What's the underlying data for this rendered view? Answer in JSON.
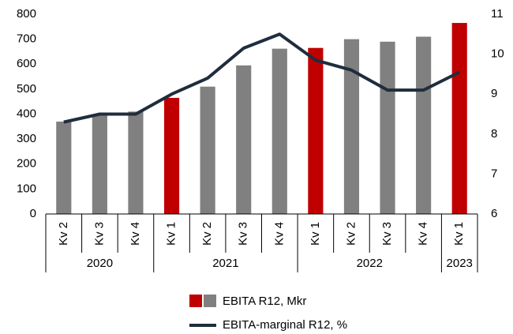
{
  "chart_data": {
    "type": "bar_line",
    "categories": [
      "Kv 2",
      "Kv 3",
      "Kv 4",
      "Kv 1",
      "Kv 2",
      "Kv 3",
      "Kv 4",
      "Kv 1",
      "Kv 2",
      "Kv 3",
      "Kv 4",
      "Kv 1"
    ],
    "category_years": [
      "2020",
      "2020",
      "2020",
      "2021",
      "2021",
      "2021",
      "2021",
      "2022",
      "2022",
      "2022",
      "2022",
      "2023"
    ],
    "series": [
      {
        "name": "EBITA R12, Mkr",
        "type": "bar",
        "axis": "y",
        "colors": [
          "#808080",
          "#808080",
          "#808080",
          "#c00000",
          "#808080",
          "#808080",
          "#808080",
          "#c00000",
          "#808080",
          "#808080",
          "#808080",
          "#c00000"
        ],
        "legend_colors": [
          "#c00000",
          "#808080"
        ],
        "values": [
          370,
          400,
          410,
          465,
          510,
          595,
          662,
          665,
          700,
          690,
          710,
          765
        ]
      },
      {
        "name": "EBITA-marginal R12, %",
        "type": "line",
        "axis": "y2",
        "color": "#1f2d3d",
        "values": [
          8.3,
          8.5,
          8.5,
          9.0,
          9.4,
          10.15,
          10.5,
          9.85,
          9.6,
          9.1,
          9.1,
          9.55
        ]
      }
    ],
    "ylim": [
      0,
      800
    ],
    "yticks": [
      0,
      100,
      200,
      300,
      400,
      500,
      600,
      700,
      800
    ],
    "y2lim": [
      6,
      11
    ],
    "y2ticks": [
      6,
      7,
      8,
      9,
      10,
      11
    ]
  }
}
